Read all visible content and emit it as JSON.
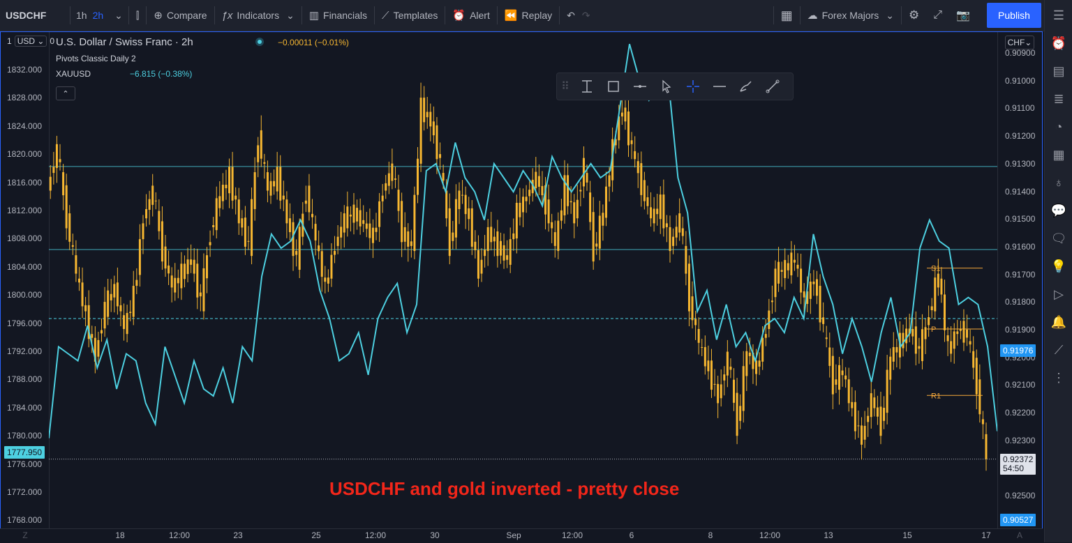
{
  "toolbar": {
    "symbol": "USDCHF",
    "intervals": [
      "1h",
      "2h"
    ],
    "active_interval": "2h",
    "compare": "Compare",
    "indicators": "Indicators",
    "financials": "Financials",
    "templates": "Templates",
    "alert": "Alert",
    "replay": "Replay",
    "watchlist": "Forex Majors",
    "publish": "Publish"
  },
  "legend": {
    "title": "U.S. Dollar / Swiss Franc",
    "interval": "2h",
    "change": "−0.00011 (−0.01%)",
    "pivots": "Pivots Classic Daily 2",
    "overlay_symbol": "XAUUSD",
    "overlay_change": "−6.815 (−0.38%)"
  },
  "left_axis": {
    "unit_prefix": "1",
    "unit": "USD",
    "unit_suffix": "0",
    "ticks": [
      "1832.000",
      "1828.000",
      "1824.000",
      "1820.000",
      "1816.000",
      "1812.000",
      "1808.000",
      "1804.000",
      "1800.000",
      "1796.000",
      "1792.000",
      "1788.000",
      "1784.000",
      "1780.000",
      "1776.000",
      "1772.000",
      "1768.000"
    ],
    "current_label": "1777.950"
  },
  "right_axis": {
    "unit": "CHF",
    "ticks": [
      "0.90900",
      "0.91000",
      "0.91100",
      "0.91200",
      "0.91300",
      "0.91400",
      "0.91500",
      "0.91600",
      "0.91700",
      "0.91800",
      "0.91900",
      "0.92000",
      "0.92100",
      "0.92200",
      "0.92300",
      "0.92400",
      "0.92500"
    ],
    "current_price": "0.92372",
    "countdown": "54:50",
    "xau_price": "0.91976",
    "bottom_label": "0.90527"
  },
  "x_axis": {
    "ticks": [
      "18",
      "12:00",
      "23",
      "25",
      "12:00",
      "30",
      "Sep",
      "12:00",
      "6",
      "8",
      "12:00",
      "13",
      "15",
      "17"
    ],
    "left_button": "Z",
    "right_button": "A"
  },
  "pivots": {
    "s1": "S1",
    "p": "P",
    "r1": "R1"
  },
  "annotation": "USDCHF and gold inverted - pretty close",
  "colors": {
    "candles": "#f7b731",
    "overlay": "#4dd0e1",
    "accent": "#2962ff",
    "annotation": "#f2261a"
  },
  "chart_data": {
    "type": "line",
    "series": [
      {
        "name": "XAUUSD",
        "axis": "left",
        "values": [
          1775,
          1788,
          1787,
          1786,
          1791,
          1785,
          1789,
          1782,
          1787,
          1786,
          1780,
          1777,
          1788,
          1784,
          1780,
          1786,
          1782,
          1781,
          1785,
          1780,
          1788,
          1786,
          1798,
          1804,
          1802,
          1803,
          1806,
          1803,
          1796,
          1792,
          1786,
          1787,
          1790,
          1784,
          1792,
          1795,
          1797,
          1790,
          1794,
          1813,
          1814,
          1810,
          1817,
          1812,
          1810,
          1806,
          1814,
          1812,
          1810,
          1813,
          1811,
          1808,
          1815,
          1812,
          1810,
          1812,
          1814,
          1812,
          1813,
          1822,
          1831,
          1826,
          1823,
          1825,
          1826,
          1812,
          1807,
          1793,
          1796,
          1789,
          1794,
          1788,
          1790,
          1786,
          1791,
          1792,
          1790,
          1795,
          1792,
          1804,
          1798,
          1794,
          1787,
          1792,
          1788,
          1783,
          1790,
          1795,
          1788,
          1790,
          1802,
          1806,
          1803,
          1802,
          1794,
          1795,
          1794,
          1788,
          1776
        ]
      },
      {
        "name": "USDCHF",
        "axis": "right",
        "values": [
          0.914,
          0.9125,
          0.915,
          0.917,
          0.9185,
          0.92,
          0.9182,
          0.9175,
          0.919,
          0.9178,
          0.915,
          0.914,
          0.9162,
          0.9175,
          0.917,
          0.9165,
          0.918,
          0.9155,
          0.9142,
          0.9135,
          0.915,
          0.916,
          0.912,
          0.914,
          0.9135,
          0.915,
          0.9165,
          0.914,
          0.9158,
          0.9175,
          0.916,
          0.915,
          0.9148,
          0.9152,
          0.9157,
          0.914,
          0.9132,
          0.9155,
          0.916,
          0.911,
          0.9115,
          0.913,
          0.916,
          0.914,
          0.915,
          0.917,
          0.9155,
          0.916,
          0.9165,
          0.9148,
          0.9142,
          0.9135,
          0.9145,
          0.916,
          0.9138,
          0.915,
          0.913,
          0.9162,
          0.9148,
          0.9125,
          0.911,
          0.9125,
          0.9138,
          0.915,
          0.9145,
          0.916,
          0.915,
          0.918,
          0.9195,
          0.9205,
          0.9215,
          0.92,
          0.9225,
          0.9198,
          0.9205,
          0.919,
          0.917,
          0.9168,
          0.9165,
          0.918,
          0.9172,
          0.919,
          0.921,
          0.9205,
          0.922,
          0.923,
          0.9215,
          0.9225,
          0.92,
          0.9195,
          0.919,
          0.9198,
          0.9185,
          0.917,
          0.9198,
          0.919,
          0.9192,
          0.921,
          0.9237
        ]
      }
    ],
    "hlines_left": [
      1813.6,
      1801.8
    ],
    "dashed_left": 1792.0
  }
}
